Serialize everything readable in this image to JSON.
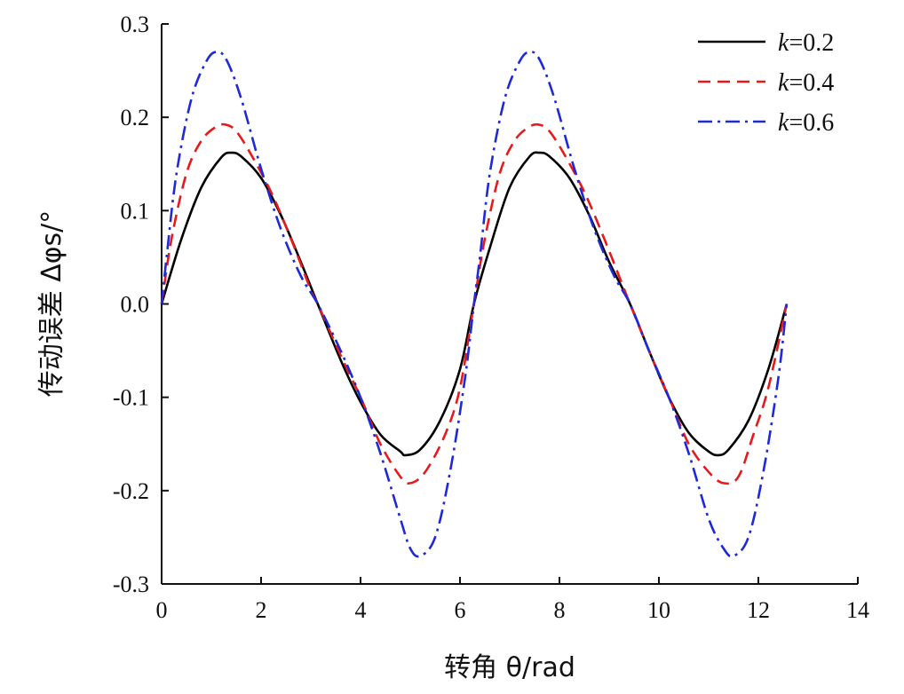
{
  "chart_data": {
    "type": "line",
    "xlabel": "转角 θ/rad",
    "ylabel": "传动误差 Δφs/°",
    "xlim": [
      0,
      14
    ],
    "ylim": [
      -0.3,
      0.3
    ],
    "x_ticks": [
      "0",
      "2",
      "4",
      "6",
      "8",
      "10",
      "12",
      "14"
    ],
    "y_ticks": [
      "0.3",
      "0.2",
      "0.1",
      "0.0",
      "-0.1",
      "-0.2",
      "-0.3"
    ],
    "legend_position": "top-right",
    "grid": false,
    "series": [
      {
        "name": "k=0.2",
        "label_k": "k",
        "label_val": "=0.2",
        "color": "#000000",
        "style": "solid",
        "x": [
          0,
          0.4,
          0.8,
          1.2,
          1.4,
          1.6,
          2.0,
          2.4,
          2.8,
          3.14,
          3.6,
          4.0,
          4.4,
          4.8,
          4.9,
          5.2,
          5.6,
          6.0,
          6.28,
          6.6,
          7.0,
          7.4,
          7.6,
          7.8,
          8.2,
          8.6,
          9.0,
          9.42,
          9.8,
          10.2,
          10.6,
          11.0,
          11.2,
          11.4,
          11.8,
          12.2,
          12.57
        ],
        "y": [
          0.0,
          0.07,
          0.125,
          0.157,
          0.162,
          0.158,
          0.135,
          0.095,
          0.045,
          0.0,
          -0.06,
          -0.105,
          -0.14,
          -0.158,
          -0.162,
          -0.156,
          -0.125,
          -0.07,
          0.0,
          0.06,
          0.125,
          0.158,
          0.162,
          0.158,
          0.135,
          0.095,
          0.045,
          0.0,
          -0.05,
          -0.1,
          -0.138,
          -0.158,
          -0.162,
          -0.156,
          -0.125,
          -0.07,
          0.0
        ]
      },
      {
        "name": "k=0.4",
        "label_k": "k",
        "label_val": "=0.4",
        "color": "#e8191b",
        "style": "dashed",
        "x": [
          0,
          0.2,
          0.5,
          0.8,
          1.1,
          1.3,
          1.5,
          1.8,
          2.2,
          2.6,
          3.0,
          3.14,
          3.6,
          4.0,
          4.4,
          4.8,
          5.0,
          5.3,
          5.7,
          6.0,
          6.28,
          6.5,
          6.8,
          7.1,
          7.4,
          7.6,
          7.8,
          8.1,
          8.5,
          8.9,
          9.42,
          9.8,
          10.2,
          10.6,
          11.0,
          11.3,
          11.6,
          11.9,
          12.2,
          12.57
        ],
        "y": [
          0.0,
          0.07,
          0.14,
          0.175,
          0.19,
          0.192,
          0.185,
          0.16,
          0.12,
          0.07,
          0.015,
          0.0,
          -0.055,
          -0.1,
          -0.15,
          -0.185,
          -0.192,
          -0.18,
          -0.14,
          -0.09,
          0.0,
          0.07,
          0.14,
          0.175,
          0.19,
          0.192,
          0.185,
          0.16,
          0.12,
          0.07,
          0.0,
          -0.05,
          -0.1,
          -0.15,
          -0.18,
          -0.192,
          -0.185,
          -0.14,
          -0.09,
          0.0
        ]
      },
      {
        "name": "k=0.6",
        "label_k": "k",
        "label_val": "=0.6",
        "color": "#1e29d8",
        "style": "dashdot",
        "x": [
          0,
          0.1,
          0.3,
          0.6,
          0.9,
          1.1,
          1.3,
          1.6,
          2.0,
          2.4,
          2.8,
          3.14,
          3.6,
          4.0,
          4.4,
          4.8,
          5.0,
          5.2,
          5.5,
          5.8,
          6.1,
          6.28,
          6.4,
          6.6,
          6.9,
          7.2,
          7.4,
          7.6,
          7.9,
          8.3,
          8.7,
          9.1,
          9.42,
          9.8,
          10.2,
          10.6,
          11.0,
          11.3,
          11.5,
          11.8,
          12.1,
          12.4,
          12.57
        ],
        "y": [
          0.0,
          0.05,
          0.14,
          0.22,
          0.26,
          0.27,
          0.262,
          0.22,
          0.145,
          0.08,
          0.03,
          0.0,
          -0.05,
          -0.1,
          -0.16,
          -0.23,
          -0.262,
          -0.27,
          -0.25,
          -0.18,
          -0.08,
          0.0,
          0.05,
          0.14,
          0.22,
          0.26,
          0.27,
          0.262,
          0.22,
          0.145,
          0.08,
          0.03,
          0.0,
          -0.05,
          -0.1,
          -0.16,
          -0.23,
          -0.262,
          -0.27,
          -0.25,
          -0.18,
          -0.08,
          0.0
        ]
      }
    ]
  }
}
